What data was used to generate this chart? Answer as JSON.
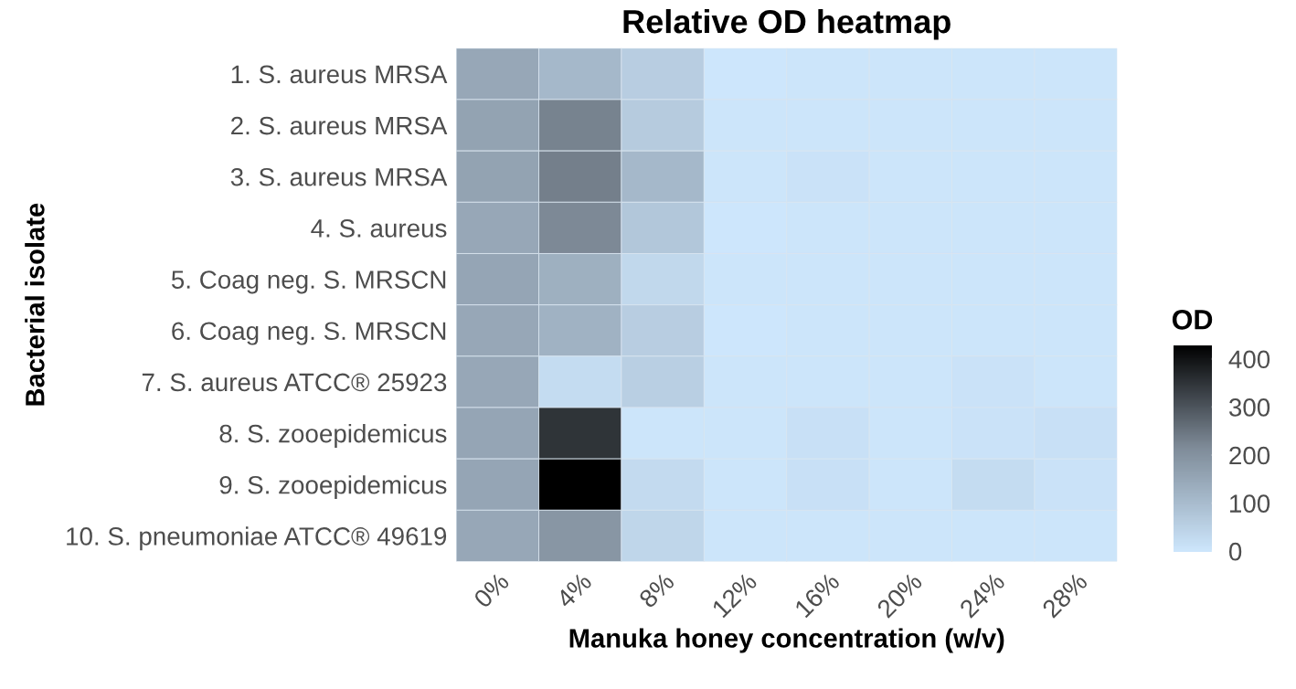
{
  "chart_data": {
    "type": "heatmap",
    "title": "Relative OD heatmap",
    "xlabel": "Manuka honey concentration (w/v)",
    "ylabel": "Bacterial isolate",
    "clabel": "OD",
    "categories": [
      "0%",
      "4%",
      "8%",
      "12%",
      "16%",
      "20%",
      "24%",
      "28%"
    ],
    "y_categories": [
      "1. S. aureus MRSA",
      "2. S. aureus MRSA",
      "3. S. aureus MRSA",
      "4. S. aureus",
      "5. Coag neg. S. MRSCN",
      "6. Coag neg. S. MRSCN",
      "7. S. aureus ATCC® 25923",
      "8. S. zooepidemicus",
      "9. S. zooepidemicus",
      "10. S. pneumoniae ATCC® 49619"
    ],
    "cells": [
      [
        150,
        110,
        60,
        0,
        5,
        5,
        5,
        5
      ],
      [
        160,
        230,
        65,
        5,
        5,
        5,
        5,
        5
      ],
      [
        160,
        235,
        110,
        5,
        10,
        5,
        5,
        5
      ],
      [
        150,
        220,
        75,
        0,
        5,
        5,
        5,
        5
      ],
      [
        155,
        130,
        35,
        5,
        5,
        5,
        5,
        5
      ],
      [
        150,
        125,
        60,
        0,
        5,
        5,
        5,
        5
      ],
      [
        150,
        25,
        55,
        5,
        5,
        5,
        10,
        5
      ],
      [
        155,
        350,
        5,
        5,
        15,
        5,
        10,
        15
      ],
      [
        155,
        430,
        30,
        5,
        15,
        5,
        25,
        10
      ],
      [
        150,
        190,
        40,
        5,
        5,
        5,
        5,
        5
      ]
    ],
    "clim": [
      0,
      430
    ],
    "cticks": [
      0,
      100,
      200,
      300,
      400
    ],
    "colors": [
      "#cde6fc",
      "#7f8c99",
      "#000000"
    ]
  }
}
